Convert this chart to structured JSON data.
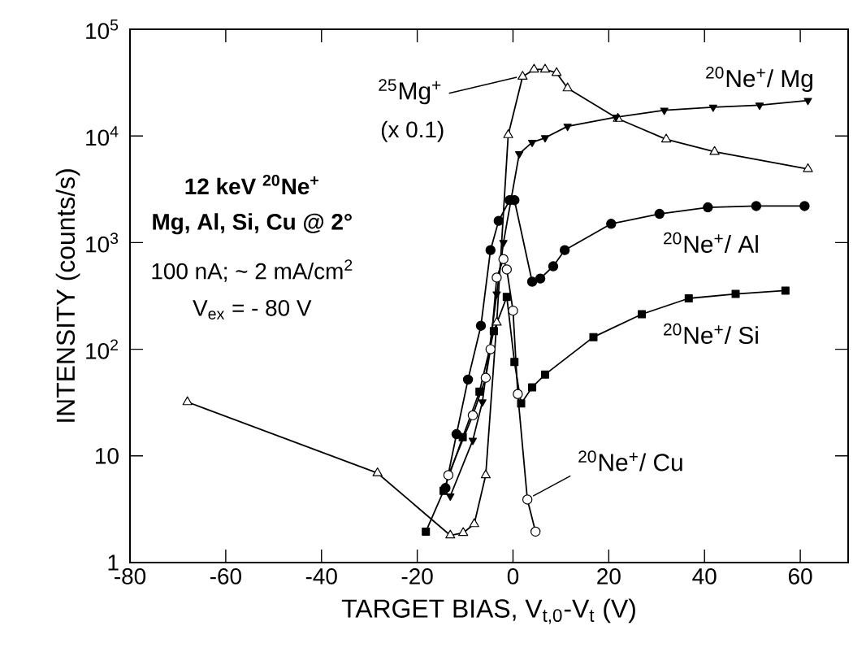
{
  "chart_data": {
    "type": "line",
    "xlabel": "TARGET BIAS, V$_{t,0}$-V$_{t}$ (V)",
    "ylabel": "INTENSITY (counts/s)",
    "log": "y",
    "xlim": [
      -80,
      70
    ],
    "xticks": [
      -80,
      -60,
      -40,
      -20,
      0,
      20,
      40,
      60
    ],
    "ylim": [
      1,
      100000
    ],
    "yticks": [
      1,
      10,
      {
        "value": 100,
        "label": "10$^{2}$"
      },
      {
        "value": 1000,
        "label": "10$^{3}$"
      },
      {
        "value": 10000,
        "label": "10$^{4}$"
      },
      {
        "value": 100000,
        "label": "10$^{5}$"
      }
    ],
    "line_style": "solid",
    "series": [
      {
        "name": "$^{25}$Mg$^{+}$",
        "color": "#000000",
        "marker": "triangle",
        "x": [
          -68,
          -28.3,
          -13.1,
          -10.4,
          -8.1,
          -5.7,
          -3.4,
          -1,
          2,
          4.4,
          6.7,
          9.1,
          11.4,
          21.9,
          32,
          42.1,
          61.6
        ],
        "values": [
          32,
          6.9,
          1.8,
          1.9,
          2.3,
          6.6,
          178,
          10200,
          36000,
          42000,
          42000,
          39000,
          28000,
          14500,
          9300,
          7100,
          4900
        ]
      },
      {
        "name": "$^{20}$Ne$^{+}$/ Mg",
        "color": "#000000",
        "marker": "triangle",
        "x": [
          -13.1,
          -8.4,
          -6.4,
          -3.4,
          -2,
          1.3,
          4,
          6.7,
          11.4,
          21.5,
          31.6,
          41.8,
          51.5,
          61.6
        ],
        "values": [
          4.2,
          14,
          32,
          330,
          1000,
          6800,
          8700,
          9600,
          12300,
          15000,
          17400,
          18600,
          19400,
          21500
        ]
      },
      {
        "name": "$^{20}$Ne$^{+}$/ Al",
        "color": "#000000",
        "marker": "circle",
        "x": [
          -14.1,
          -11.8,
          -9.4,
          -6.7,
          -4.7,
          -3,
          -0.7,
          0.3,
          4,
          5.7,
          8.4,
          10.8,
          20.5,
          30.6,
          40.7,
          50.8,
          60.9
        ],
        "values": [
          5,
          16,
          52,
          166,
          850,
          1600,
          2500,
          2500,
          430,
          460,
          600,
          850,
          1500,
          1860,
          2140,
          2200,
          2200
        ]
      },
      {
        "name": "$^{20}$Ne$^{+}$/ Si",
        "color": "#000000",
        "marker": "square",
        "x": [
          -18.2,
          -14.5,
          -10.5,
          -7,
          -4,
          -1.3,
          0.3,
          1.7,
          4,
          6.7,
          16.8,
          26.9,
          36.7,
          46.5,
          56.9
        ],
        "values": [
          1.95,
          4.7,
          15,
          40,
          148,
          310,
          76,
          31,
          44,
          58,
          130,
          213,
          300,
          330,
          355
        ]
      },
      {
        "name": "$^{20}$Ne$^{+}$/ Cu",
        "color": "#000000",
        "marker": "circle",
        "x": [
          -13.5,
          -8.4,
          -5.7,
          -4.7,
          -3.4,
          -2,
          -1.3,
          0,
          1,
          3,
          4.7
        ],
        "values": [
          6.6,
          24,
          54,
          100,
          470,
          700,
          560,
          230,
          38,
          3.9,
          1.95
        ]
      }
    ],
    "annotations": [
      "12 keV $^{20}$Ne$^{+}$",
      "Mg, Al, Si, Cu @ 2°",
      "100 nA; ~ 2 mA/cm$^{2}$",
      "V$_{ex}$ = - 80 V",
      "(x 0.1)"
    ]
  }
}
